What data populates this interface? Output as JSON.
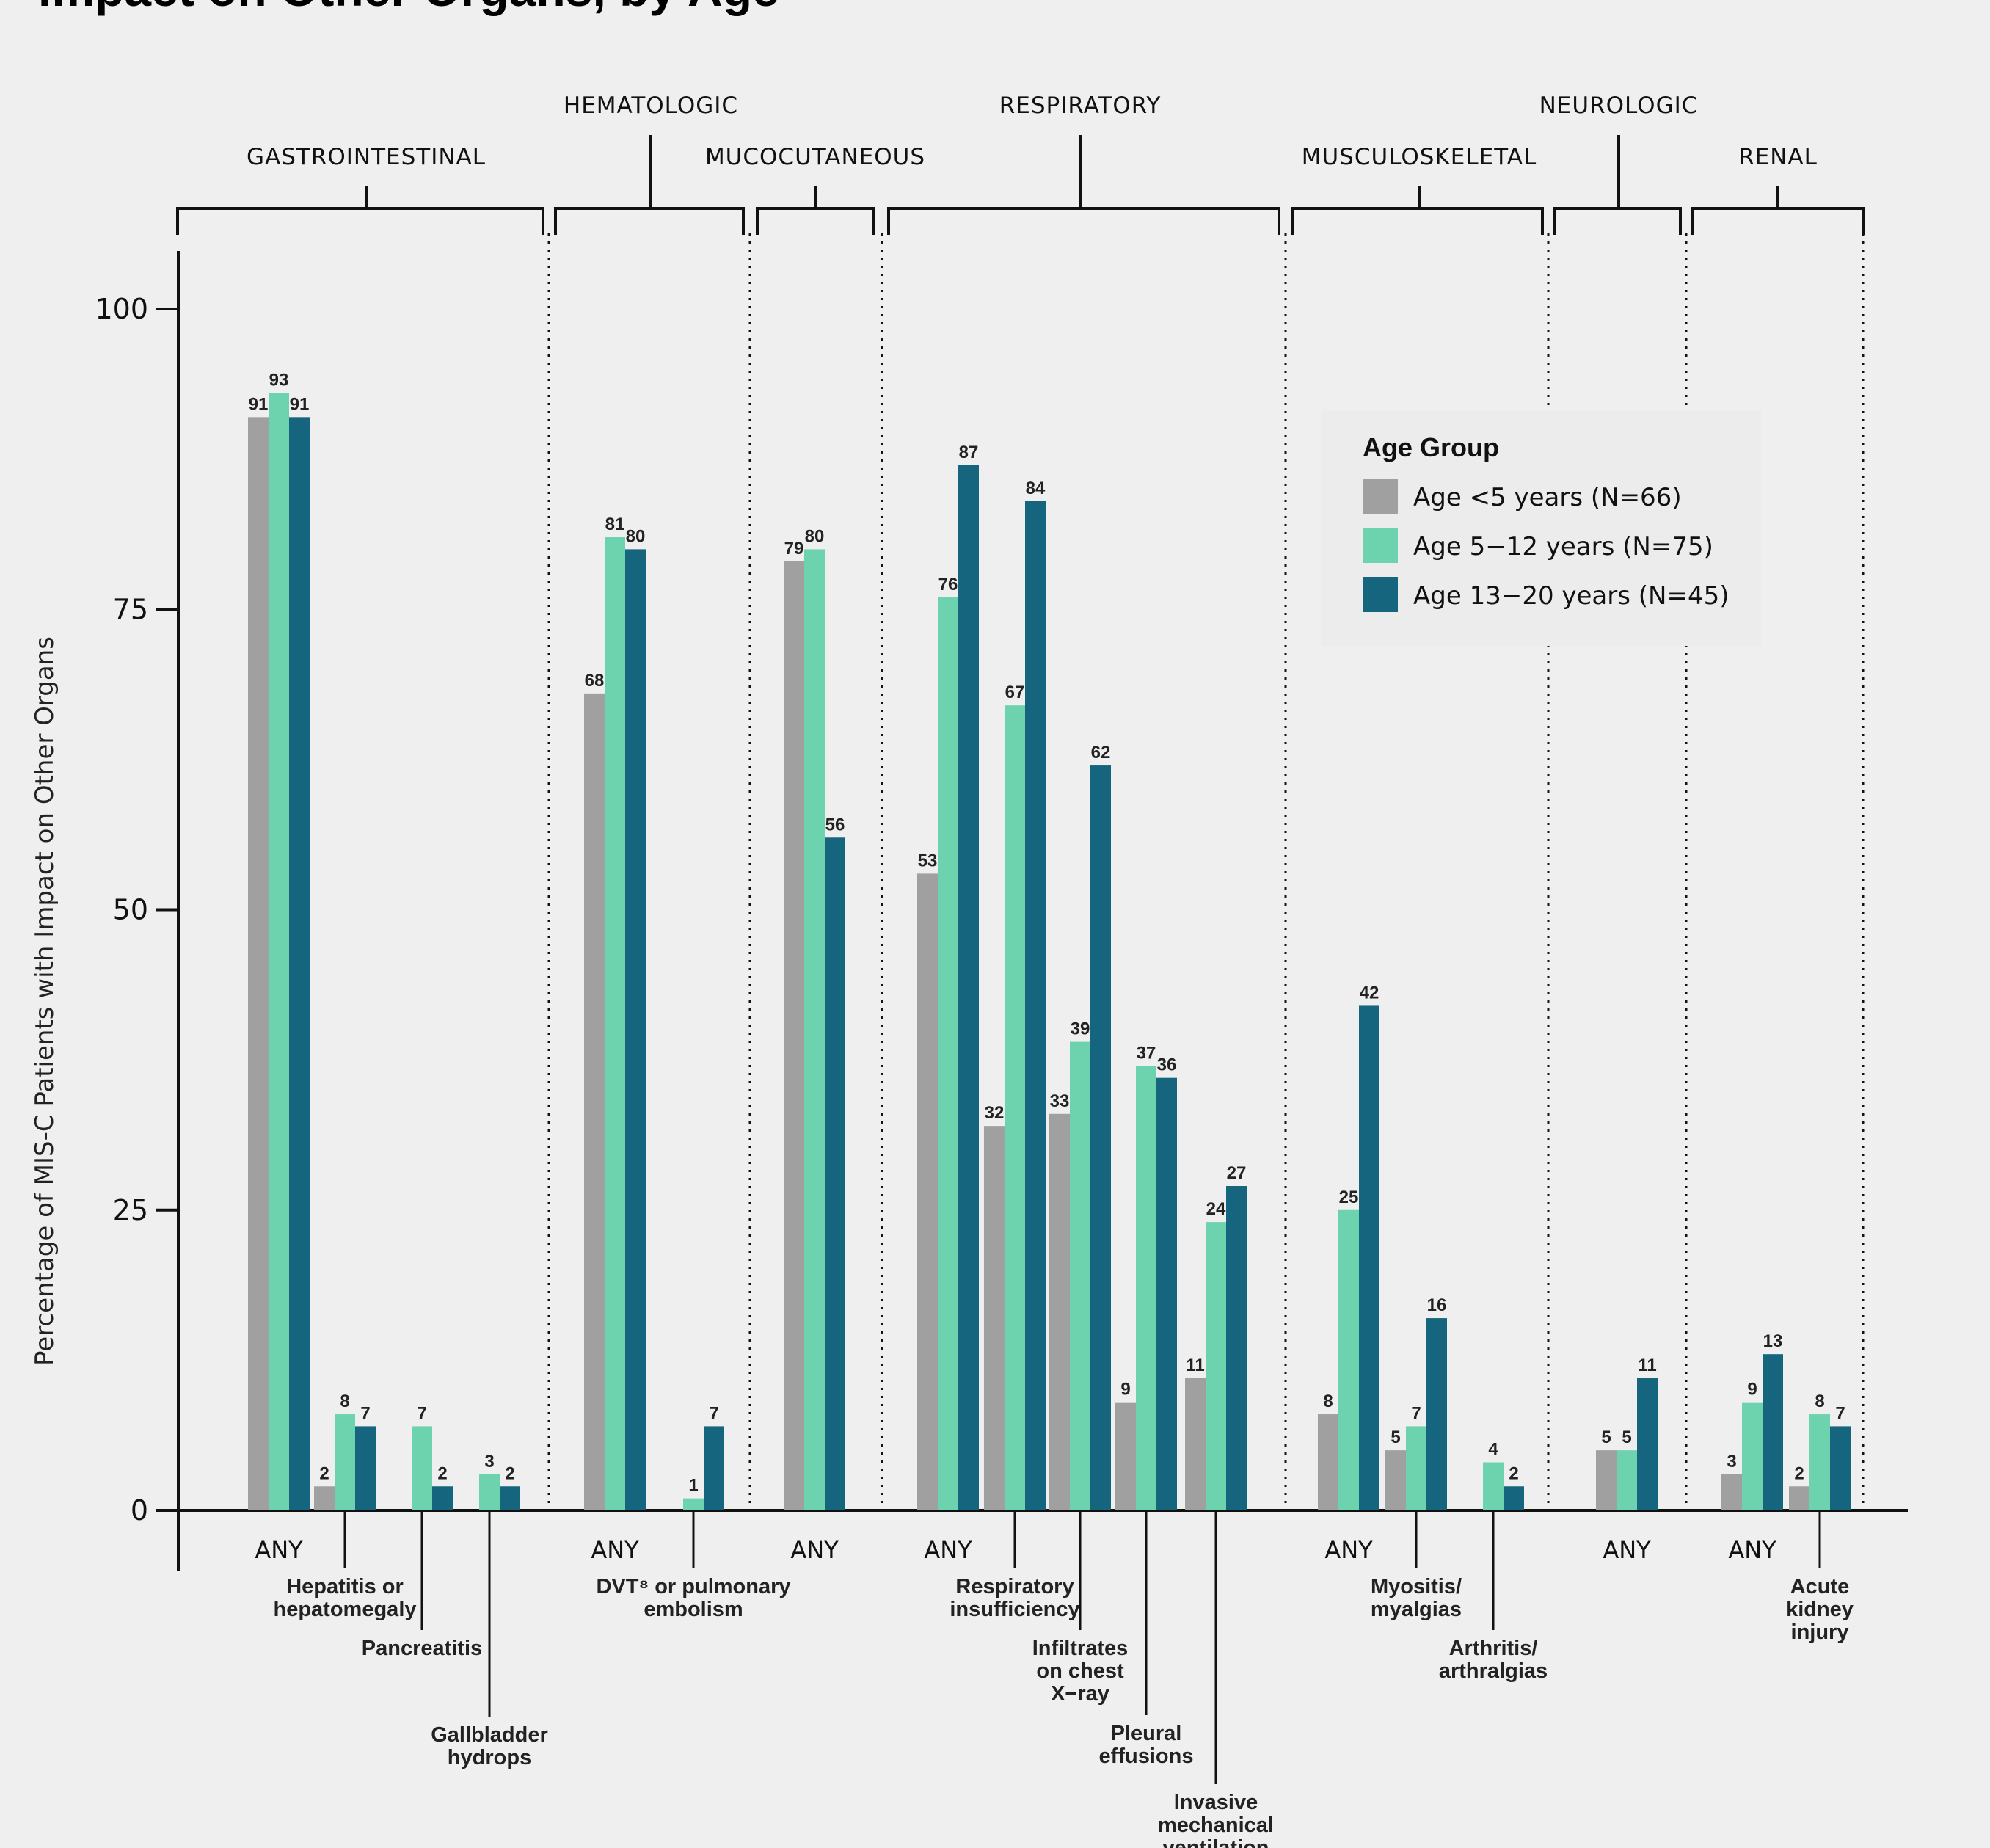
{
  "chart_data": {
    "type": "bar",
    "title": "Impact on Other Organs, by Age",
    "ylabel": "Percentage of MIS-C Patients with Impact on Other Organs",
    "ylim": [
      0,
      100
    ],
    "yticks": [
      0,
      25,
      50,
      75,
      100
    ],
    "legend": {
      "title": "Age Group",
      "placement": "top-right",
      "series": [
        {
          "name": "Age <5 years (N=66)",
          "color": "#a0a0a0"
        },
        {
          "name": "Age 5−12 years (N=75)",
          "color": "#6dd3ae"
        },
        {
          "name": "Age 13−20 years (N=45)",
          "color": "#14657d"
        }
      ]
    },
    "groups": [
      {
        "name": "GASTROINTESTINAL",
        "categories": [
          {
            "label": "ANY",
            "values": [
              91,
              93,
              91
            ]
          },
          {
            "label": "Hepatitis or\nhepatomegaly",
            "values": [
              2,
              8,
              7
            ]
          },
          {
            "label": "Pancreatitis",
            "values": [
              null,
              7,
              2
            ]
          },
          {
            "label": "Gallbladder\nhydrops",
            "values": [
              null,
              3,
              2
            ]
          }
        ]
      },
      {
        "name": "HEMATOLOGIC",
        "categories": [
          {
            "label": "ANY",
            "values": [
              68,
              81,
              80
            ]
          },
          {
            "label": "DVT⁸ or pulmonary\nembolism",
            "values": [
              null,
              1,
              7
            ]
          }
        ]
      },
      {
        "name": "MUCOCUTANEOUS",
        "categories": [
          {
            "label": "ANY",
            "values": [
              79,
              80,
              56
            ]
          }
        ]
      },
      {
        "name": "RESPIRATORY",
        "categories": [
          {
            "label": "ANY",
            "values": [
              53,
              76,
              87
            ]
          },
          {
            "label": "Respiratory\ninsufficiency",
            "values": [
              32,
              67,
              84
            ]
          },
          {
            "label": "Infiltrates\non chest\nX−ray",
            "values": [
              33,
              39,
              62
            ]
          },
          {
            "label": "Pleural\neffusions",
            "values": [
              9,
              37,
              36
            ]
          },
          {
            "label": "Invasive\nmechanical\nventilation",
            "values": [
              11,
              24,
              27
            ]
          }
        ]
      },
      {
        "name": "MUSCULOSKELETAL",
        "categories": [
          {
            "label": "ANY",
            "values": [
              8,
              25,
              42
            ]
          },
          {
            "label": "Myositis/\nmyalgias",
            "values": [
              5,
              7,
              16
            ]
          },
          {
            "label": "Arthritis/\narthralgias",
            "values": [
              null,
              4,
              2
            ]
          }
        ]
      },
      {
        "name": "NEUROLOGIC",
        "categories": [
          {
            "label": "ANY",
            "values": [
              5,
              5,
              11
            ]
          }
        ]
      },
      {
        "name": "RENAL",
        "categories": [
          {
            "label": "ANY",
            "values": [
              3,
              9,
              13
            ]
          },
          {
            "label": "Acute\nkidney\ninjury",
            "values": [
              2,
              8,
              7
            ]
          }
        ]
      }
    ]
  }
}
